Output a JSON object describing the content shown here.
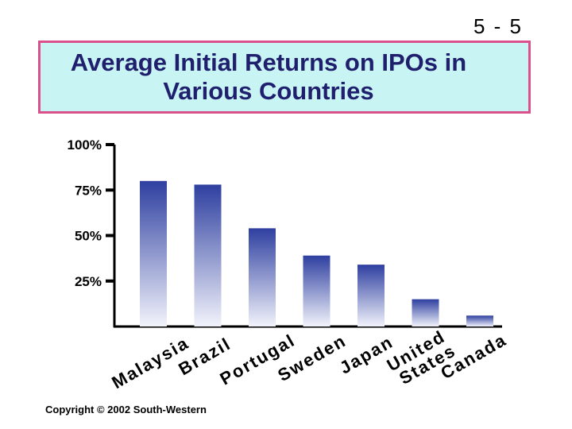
{
  "slide_number": "5 - 5",
  "title_line1": "Average Initial Returns on IPOs in",
  "title_line2": "Various Countries",
  "copyright": "Copyright © 2002 South-Western",
  "colors": {
    "bar_dark": "#2e3fa0",
    "bar_light": "#f2f3fb",
    "title_bg": "#c8f4f4",
    "title_border": "#d9508c",
    "title_text": "#1f1f6e"
  },
  "chart_data": {
    "type": "bar",
    "title": "Average Initial Returns on IPOs in Various Countries",
    "xlabel": "",
    "ylabel": "",
    "ylim": [
      0,
      100
    ],
    "ytick_values": [
      25,
      75,
      100
    ],
    "ytick_labels": [
      "25%",
      "75%",
      "100%"
    ],
    "extra_tick_values": [
      50
    ],
    "extra_tick_labels": [
      "50%"
    ],
    "categories": [
      "Malaysia",
      "Brazil",
      "Portugal",
      "Sweden",
      "Japan",
      "United States",
      "Canada"
    ],
    "label_lines": [
      [
        "Malaysia"
      ],
      [
        "Brazil"
      ],
      [
        "Portugal"
      ],
      [
        "Sweden"
      ],
      [
        "Japan"
      ],
      [
        "United",
        "States"
      ],
      [
        "Canada"
      ]
    ],
    "values": [
      80,
      78,
      54,
      39,
      34,
      15,
      6
    ]
  }
}
